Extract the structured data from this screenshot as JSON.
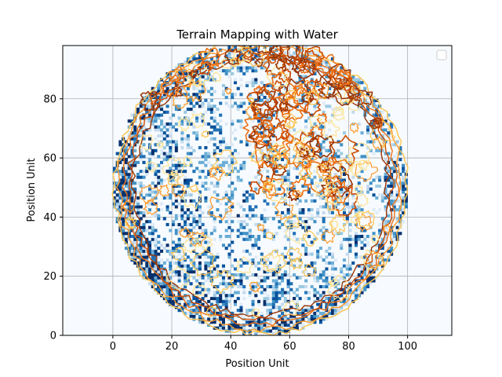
{
  "chart_data": {
    "type": "heatmap",
    "title": "Terrain Mapping with Water",
    "xlabel": "Position Unit",
    "ylabel": "Position Unit",
    "xlim": [
      -17,
      115
    ],
    "ylim": [
      0,
      98
    ],
    "xticks": [
      0,
      20,
      40,
      60,
      80,
      100
    ],
    "yticks": [
      0,
      20,
      40,
      60,
      80
    ],
    "grid": true,
    "legend": {
      "position": "top-right",
      "entries": []
    },
    "terrain": {
      "shape": "disk",
      "center": [
        50,
        50
      ],
      "radius": 50,
      "grid_resolution": 1,
      "colormap": "Blues",
      "range_description": "dense dark blue patches at left and bottom-left, lighter speckle toward the right"
    },
    "water_contours": {
      "colormap": "YlOrBr",
      "levels": 8,
      "concentration": "strongest around (60,80) and along the disk rim"
    },
    "colors": {
      "background": "#f7fbff",
      "blue_dark": "#08519c",
      "blue_mid": "#4292c6",
      "blue_light": "#c6dbef",
      "orange_dark": "#cc4c02",
      "orange_mid": "#fe9929",
      "yellow_light": "#fee391"
    }
  }
}
